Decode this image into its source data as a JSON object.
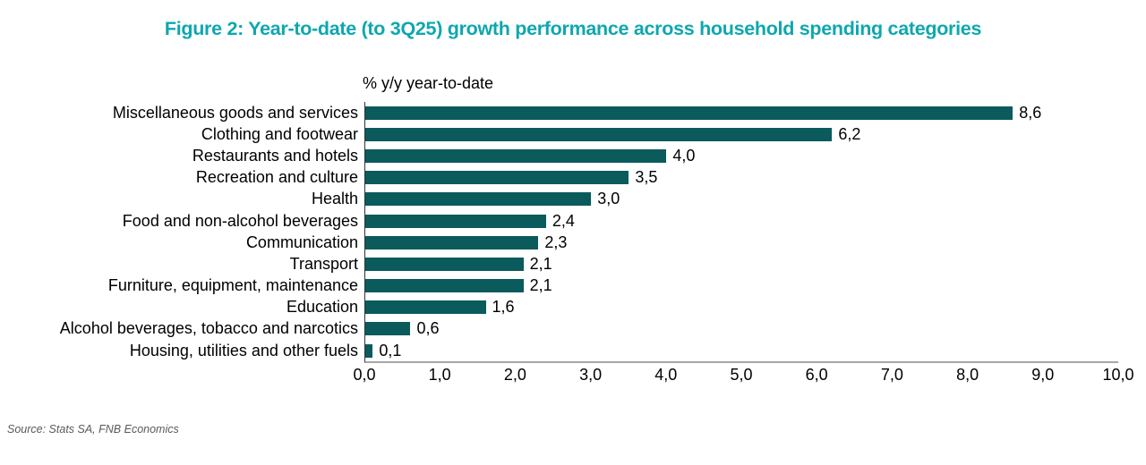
{
  "title": "Figure 2: Year-to-date (to 3Q25) growth performance across household spending categories",
  "axis_title": "% y/y year-to-date",
  "source": "Source: Stats SA, FNB Economics",
  "colors": {
    "title_color": "#0EA7B0",
    "bar_color": "#0B5A5C",
    "axis_line": "#A6A6A6",
    "text_color": "#000000",
    "source_color": "#595959"
  },
  "chart_data": {
    "type": "bar",
    "orientation": "horizontal",
    "title": "Figure 2: Year-to-date (to 3Q25) growth performance across household spending categories",
    "xlabel": "% y/y year-to-date",
    "ylabel": "",
    "categories": [
      "Miscellaneous goods and services",
      "Clothing and footwear",
      "Restaurants and hotels",
      "Recreation and culture",
      "Health",
      "Food and non-alcohol beverages",
      "Communication",
      "Transport",
      "Furniture, equipment, maintenance",
      "Education",
      "Alcohol beverages, tobacco and narcotics",
      "Housing, utilities and other fuels"
    ],
    "values": [
      8.6,
      6.2,
      4.0,
      3.5,
      3.0,
      2.4,
      2.3,
      2.1,
      2.1,
      1.6,
      0.6,
      0.1
    ],
    "value_labels": [
      "8,6",
      "6,2",
      "4,0",
      "3,5",
      "3,0",
      "2,4",
      "2,3",
      "2,1",
      "2,1",
      "1,6",
      "0,6",
      "0,1"
    ],
    "x_ticks": [
      "0,0",
      "1,0",
      "2,0",
      "3,0",
      "4,0",
      "5,0",
      "6,0",
      "7,0",
      "8,0",
      "9,0",
      "10,0"
    ],
    "xlim": [
      0,
      10
    ],
    "grid": false,
    "legend": false
  }
}
